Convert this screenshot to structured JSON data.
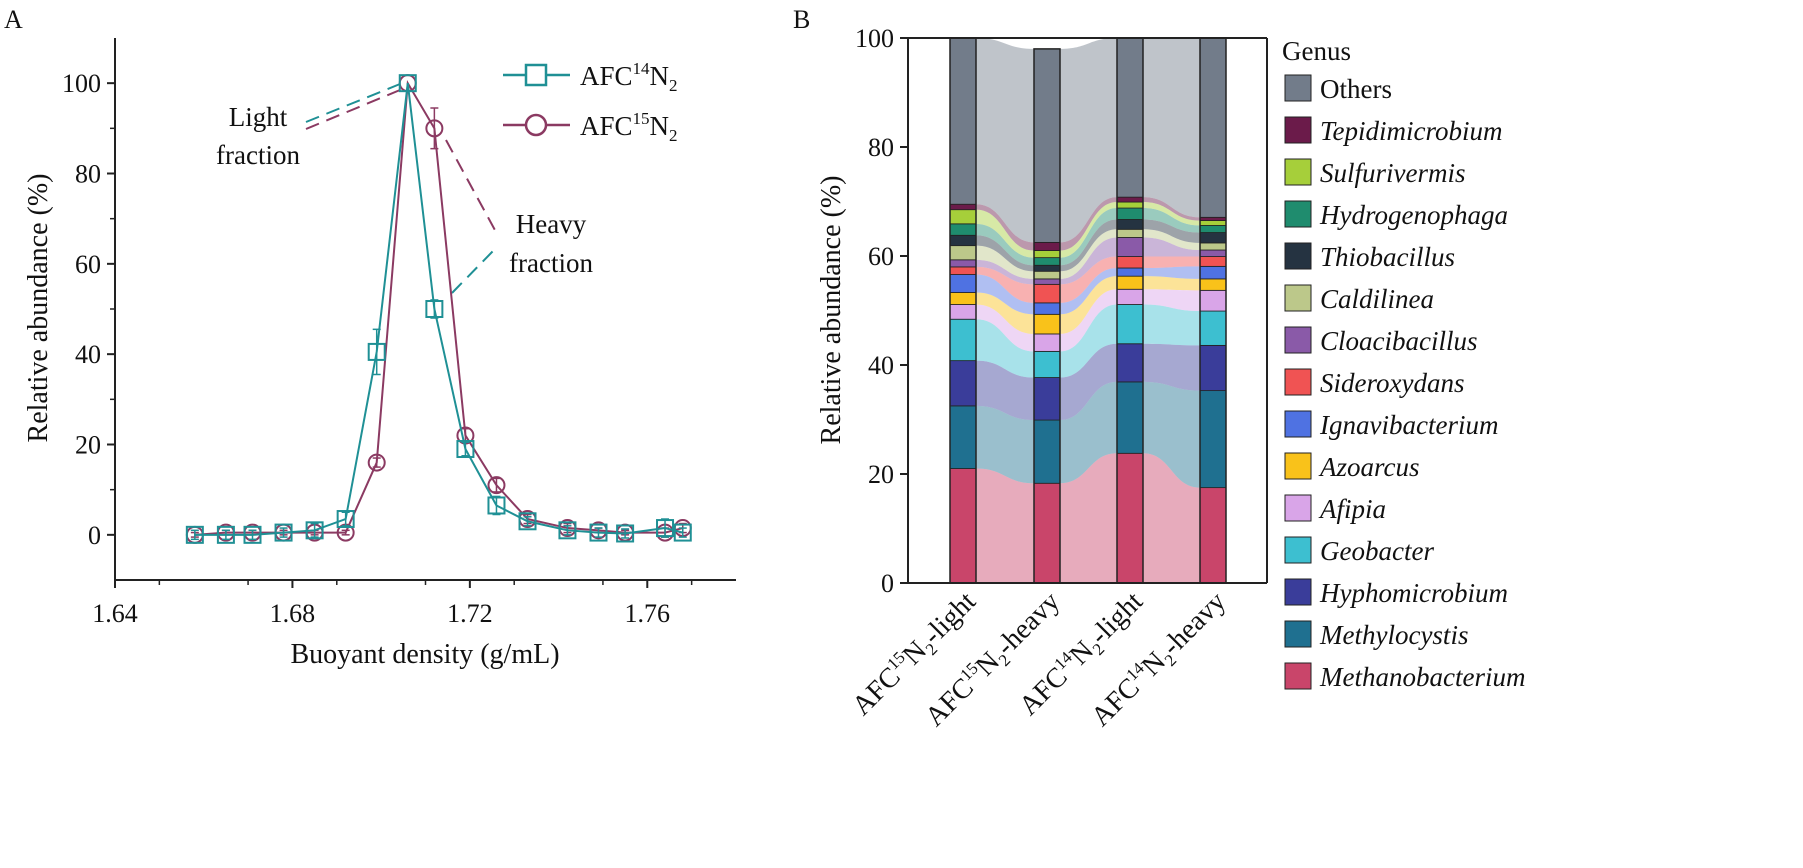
{
  "panel_a": {
    "letter": "A",
    "annotations": {
      "light_1": "Light",
      "light_2": "fraction",
      "heavy_1": "Heavy",
      "heavy_2": "fraction"
    }
  },
  "panel_b": {
    "letter": "B"
  },
  "chart_data": [
    {
      "type": "line",
      "xlabel": "Buoyant density (g/mL)",
      "ylabel": "Relative abundance (%)",
      "xlim": [
        1.64,
        1.78
      ],
      "ylim": [
        -10,
        110
      ],
      "xticks": [
        "1.64",
        "1.68",
        "1.72",
        "1.76"
      ],
      "yticks": [
        "0",
        "20",
        "40",
        "60",
        "80",
        "100"
      ],
      "legend_position": "top-right",
      "series": [
        {
          "name": "AFC¹⁴N₂",
          "name_base": "AFC",
          "name_sup": "14",
          "name_mid": "N",
          "name_sub": "2",
          "marker": "square",
          "color": "#1f9095",
          "x": [
            1.658,
            1.665,
            1.671,
            1.678,
            1.685,
            1.692,
            1.699,
            1.706,
            1.712,
            1.719,
            1.726,
            1.733,
            1.742,
            1.749,
            1.755,
            1.764,
            1.768
          ],
          "y": [
            0,
            0,
            0,
            0.5,
            1,
            3.5,
            40.5,
            100,
            50,
            19,
            6.5,
            3,
            1,
            0.5,
            0.3,
            1.5,
            0.5
          ],
          "err": [
            1,
            1,
            1,
            1,
            1.5,
            1.5,
            5,
            0,
            2,
            1.5,
            2,
            1,
            1,
            1,
            1,
            2,
            1
          ]
        },
        {
          "name": "AFC¹⁵N₂",
          "name_base": "AFC",
          "name_sup": "15",
          "name_mid": "N",
          "name_sub": "2",
          "marker": "circle",
          "color": "#8b3a62",
          "x": [
            1.658,
            1.665,
            1.671,
            1.678,
            1.685,
            1.692,
            1.699,
            1.706,
            1.712,
            1.719,
            1.726,
            1.733,
            1.742,
            1.749,
            1.755,
            1.764,
            1.768
          ],
          "y": [
            0,
            0.5,
            0.5,
            0.5,
            0.5,
            0.5,
            16,
            100,
            90,
            22,
            11,
            3.5,
            1.5,
            1,
            0.5,
            0.5,
            1.5
          ],
          "err": [
            0.5,
            0.5,
            0.5,
            0.5,
            0.5,
            0.5,
            1,
            0,
            4.5,
            1.5,
            1.5,
            1,
            1,
            0.5,
            0.5,
            1,
            1
          ]
        }
      ]
    },
    {
      "type": "bar",
      "stacked": true,
      "ylabel": "Relative abundance (%)",
      "ylim": [
        0,
        100
      ],
      "yticks": [
        "0",
        "20",
        "40",
        "60",
        "80",
        "100"
      ],
      "legend_title": "Genus",
      "legend_position": "right",
      "categories": [
        {
          "base": "AFC",
          "sup": "15",
          "mid": "N",
          "sub": "2",
          "suffix": "-light"
        },
        {
          "base": "AFC",
          "sup": "15",
          "mid": "N",
          "sub": "2",
          "suffix": "-heavy"
        },
        {
          "base": "AFC",
          "sup": "14",
          "mid": "N",
          "sub": "2",
          "suffix": "-light"
        },
        {
          "base": "AFC",
          "sup": "14",
          "mid": "N",
          "sub": "2",
          "suffix": "-heavy"
        }
      ],
      "series": [
        {
          "name": "Methanobacterium",
          "italic": true,
          "color": "#c9456a",
          "values": [
            21,
            18.3,
            23.8,
            17.5
          ]
        },
        {
          "name": "Methylocystis",
          "italic": true,
          "color": "#1f7090",
          "values": [
            11.5,
            11.6,
            13.1,
            17.8
          ]
        },
        {
          "name": "Hyphomicrobium",
          "italic": true,
          "color": "#3a3d9a",
          "values": [
            8.3,
            7.8,
            7,
            8.3
          ]
        },
        {
          "name": "Geobacter",
          "italic": true,
          "color": "#3dbfd0",
          "values": [
            7.6,
            4.8,
            7.2,
            6.3
          ]
        },
        {
          "name": "Afipia",
          "italic": true,
          "color": "#d9a5e8",
          "values": [
            2.7,
            3.2,
            2.8,
            3.8
          ]
        },
        {
          "name": "Azoarcus",
          "italic": true,
          "color": "#f9c21a",
          "values": [
            2.2,
            3.6,
            2.4,
            2.1
          ]
        },
        {
          "name": "Ignavibacterium",
          "italic": true,
          "color": "#4f72e2",
          "values": [
            3.3,
            2.1,
            1.5,
            2.3
          ]
        },
        {
          "name": "Sideroxydans",
          "italic": true,
          "color": "#f05353",
          "values": [
            1.4,
            3.4,
            2.1,
            1.8
          ]
        },
        {
          "name": "Cloacibacillus",
          "italic": true,
          "color": "#8a5aa8",
          "values": [
            1.3,
            1,
            3.5,
            1.2
          ]
        },
        {
          "name": "Caldilinea",
          "italic": true,
          "color": "#bcc88a",
          "values": [
            2.6,
            1.4,
            1.5,
            1.3
          ]
        },
        {
          "name": "Thiobacillus",
          "italic": true,
          "color": "#253341",
          "values": [
            1.9,
            1.1,
            1.8,
            1.9
          ]
        },
        {
          "name": "Hydrogenophaga",
          "italic": true,
          "color": "#1f8c6e",
          "values": [
            2.1,
            1.4,
            2.1,
            1.3
          ]
        },
        {
          "name": "Sulfurivermis",
          "italic": true,
          "color": "#a6cf3a",
          "values": [
            2.6,
            1.3,
            1.1,
            0.9
          ]
        },
        {
          "name": "Tepidimicrobium",
          "italic": true,
          "color": "#6b1b4a",
          "values": [
            1,
            1.5,
            0.9,
            0.6
          ]
        },
        {
          "name": "Others",
          "italic": false,
          "color": "#727c8a",
          "values": [
            30.5,
            35.5,
            29.2,
            32.9
          ]
        }
      ]
    }
  ]
}
